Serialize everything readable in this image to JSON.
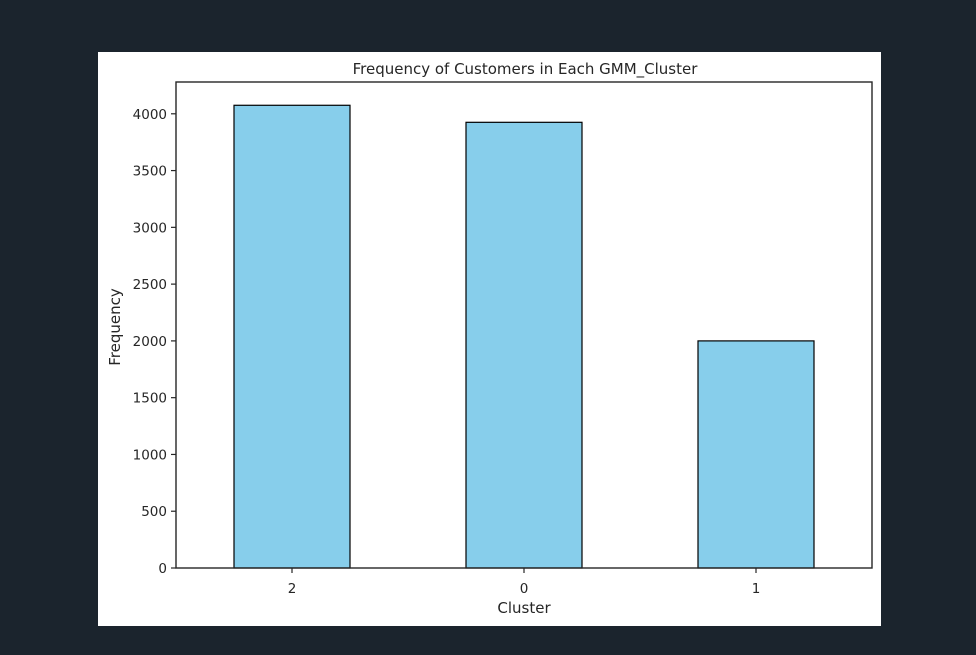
{
  "chart_data": {
    "type": "bar",
    "title": "Frequency of Customers in Each GMM_Cluster",
    "xlabel": "Cluster",
    "ylabel": "Frequency",
    "categories": [
      "2",
      "0",
      "1"
    ],
    "values": [
      4075,
      3925,
      2000
    ],
    "ylim": [
      0,
      4280
    ],
    "yticks": [
      0,
      500,
      1000,
      1500,
      2000,
      2500,
      3000,
      3500,
      4000
    ],
    "grid": false,
    "bar_color": "#87ceeb",
    "bar_edge_color": "#000000"
  },
  "colors": {
    "page_background": "#1b242d",
    "figure_background": "#ffffff"
  }
}
